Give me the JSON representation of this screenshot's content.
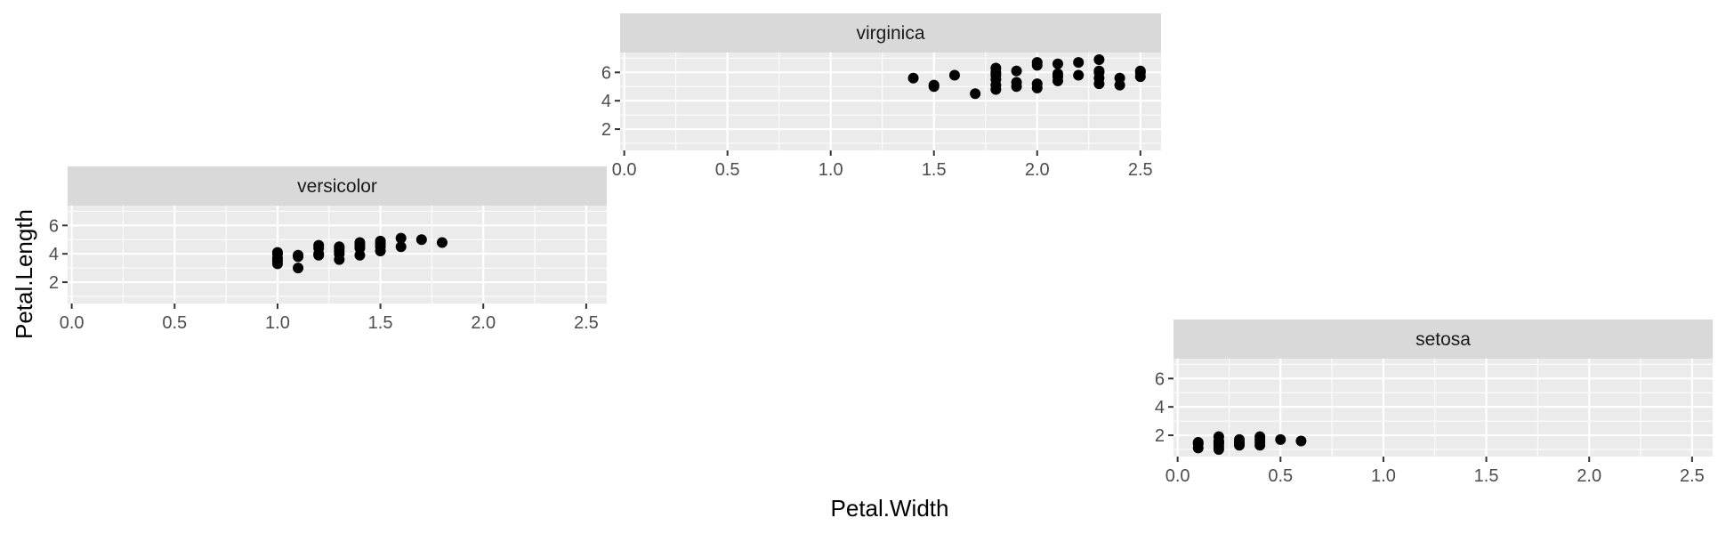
{
  "chart_data": {
    "type": "scatter",
    "xlabel": "Petal.Width",
    "ylabel": "Petal.Length",
    "xlim": [
      -0.02,
      2.6
    ],
    "ylim": [
      0.5,
      7.4
    ],
    "xticks": [
      0.0,
      0.5,
      1.0,
      1.5,
      2.0,
      2.5
    ],
    "xtick_labels": [
      "0.0",
      "0.5",
      "1.0",
      "1.5",
      "2.0",
      "2.5"
    ],
    "yticks": [
      2,
      4,
      6
    ],
    "ytick_labels": [
      "2",
      "4",
      "6"
    ],
    "grid": true,
    "panel_background": "#EBEBEB",
    "strip_background": "#D9D9D9",
    "point_color": "#000000",
    "facets": [
      {
        "label": "virginica",
        "points": [
          [
            1.4,
            5.6
          ],
          [
            1.5,
            5.0
          ],
          [
            1.5,
            5.1
          ],
          [
            1.6,
            5.8
          ],
          [
            1.7,
            4.5
          ],
          [
            1.8,
            4.8
          ],
          [
            1.8,
            5.1
          ],
          [
            1.8,
            5.5
          ],
          [
            1.8,
            5.8
          ],
          [
            1.8,
            6.0
          ],
          [
            1.8,
            6.3
          ],
          [
            1.9,
            5.0
          ],
          [
            1.9,
            5.3
          ],
          [
            1.9,
            6.1
          ],
          [
            2.0,
            4.9
          ],
          [
            2.0,
            5.2
          ],
          [
            2.0,
            6.5
          ],
          [
            2.0,
            6.7
          ],
          [
            2.1,
            5.4
          ],
          [
            2.1,
            5.7
          ],
          [
            2.1,
            5.9
          ],
          [
            2.1,
            6.6
          ],
          [
            2.2,
            5.8
          ],
          [
            2.2,
            6.7
          ],
          [
            2.3,
            5.2
          ],
          [
            2.3,
            5.6
          ],
          [
            2.3,
            6.0
          ],
          [
            2.3,
            6.1
          ],
          [
            2.3,
            6.9
          ],
          [
            2.4,
            5.1
          ],
          [
            2.4,
            5.6
          ],
          [
            2.5,
            5.7
          ],
          [
            2.5,
            6.0
          ],
          [
            2.5,
            6.1
          ]
        ]
      },
      {
        "label": "versicolor",
        "points": [
          [
            1.0,
            3.3
          ],
          [
            1.0,
            3.5
          ],
          [
            1.0,
            3.7
          ],
          [
            1.0,
            4.0
          ],
          [
            1.0,
            4.1
          ],
          [
            1.1,
            3.0
          ],
          [
            1.1,
            3.8
          ],
          [
            1.1,
            3.9
          ],
          [
            1.2,
            3.9
          ],
          [
            1.2,
            4.0
          ],
          [
            1.2,
            4.4
          ],
          [
            1.2,
            4.6
          ],
          [
            1.3,
            3.6
          ],
          [
            1.3,
            4.0
          ],
          [
            1.3,
            4.2
          ],
          [
            1.3,
            4.4
          ],
          [
            1.3,
            4.5
          ],
          [
            1.4,
            3.9
          ],
          [
            1.4,
            4.4
          ],
          [
            1.4,
            4.6
          ],
          [
            1.4,
            4.8
          ],
          [
            1.5,
            4.2
          ],
          [
            1.5,
            4.5
          ],
          [
            1.5,
            4.7
          ],
          [
            1.5,
            4.9
          ],
          [
            1.6,
            4.5
          ],
          [
            1.6,
            5.1
          ],
          [
            1.7,
            5.0
          ],
          [
            1.8,
            4.8
          ]
        ]
      },
      {
        "label": "setosa",
        "points": [
          [
            0.1,
            1.1
          ],
          [
            0.1,
            1.4
          ],
          [
            0.1,
            1.5
          ],
          [
            0.2,
            1.0
          ],
          [
            0.2,
            1.2
          ],
          [
            0.2,
            1.4
          ],
          [
            0.2,
            1.5
          ],
          [
            0.2,
            1.6
          ],
          [
            0.2,
            1.9
          ],
          [
            0.3,
            1.3
          ],
          [
            0.3,
            1.4
          ],
          [
            0.3,
            1.5
          ],
          [
            0.3,
            1.7
          ],
          [
            0.4,
            1.3
          ],
          [
            0.4,
            1.5
          ],
          [
            0.4,
            1.7
          ],
          [
            0.4,
            1.9
          ],
          [
            0.5,
            1.7
          ],
          [
            0.6,
            1.6
          ]
        ]
      }
    ]
  }
}
